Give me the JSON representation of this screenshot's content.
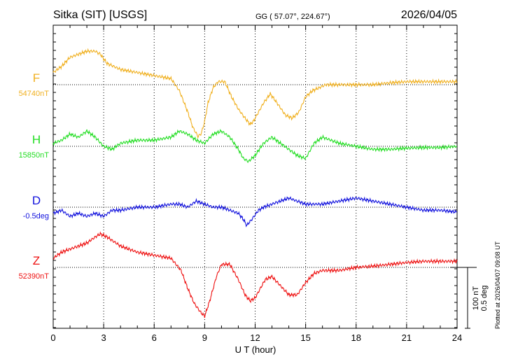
{
  "header": {
    "station": "Sitka (SIT)  [USGS]",
    "coords": "GG ( 57.07°, 224.67°)",
    "date": "2026/04/05"
  },
  "side_note": "Plotted at 2026/04/07 09:08 UT",
  "scale": {
    "nt": "100 nT",
    "deg": "0.5 deg"
  },
  "chart_data": {
    "type": "line",
    "title": "Sitka (SIT)  [USGS]",
    "xlabel": "U T (hour)",
    "xlim": [
      0,
      24
    ],
    "xticks": [
      0,
      3,
      6,
      9,
      12,
      15,
      18,
      21,
      24
    ],
    "grid": "dotted baseline per component",
    "scale_note": "one scale-bar unit = 100 nT or 0.5 deg",
    "series": [
      {
        "name": "F",
        "baseline_label": "54740nT",
        "color": "#f0b020",
        "units": "scale-bar units relative to baseline",
        "x": [
          0,
          0.5,
          1,
          1.5,
          2,
          2.5,
          2.8,
          3.2,
          4,
          5,
          6,
          7,
          7.5,
          8,
          8.3,
          8.6,
          8.8,
          9,
          9.2,
          9.5,
          9.8,
          10.2,
          10.6,
          11,
          11.4,
          11.7,
          11.9,
          12.2,
          12.5,
          12.9,
          13.3,
          13.8,
          14.2,
          14.6,
          15,
          15.4,
          15.8,
          16.2,
          17,
          18,
          19,
          20,
          21,
          22,
          23,
          24
        ],
        "values": [
          0.2,
          0.3,
          0.45,
          0.5,
          0.55,
          0.55,
          0.5,
          0.35,
          0.25,
          0.2,
          0.15,
          0.1,
          -0.1,
          -0.45,
          -0.7,
          -0.85,
          -0.8,
          -0.6,
          -0.3,
          -0.05,
          0.05,
          0.05,
          -0.2,
          -0.4,
          -0.55,
          -0.65,
          -0.6,
          -0.45,
          -0.3,
          -0.15,
          -0.3,
          -0.5,
          -0.55,
          -0.45,
          -0.2,
          -0.1,
          -0.05,
          0.0,
          0.0,
          0.0,
          0.0,
          0.03,
          0.05,
          0.05,
          0.05,
          0.05
        ]
      },
      {
        "name": "H",
        "baseline_label": "15850nT",
        "color": "#22dd22",
        "units": "scale-bar units relative to baseline",
        "x": [
          0,
          0.5,
          1,
          1.5,
          2,
          2.5,
          3,
          3.5,
          4,
          5,
          6,
          7,
          7.5,
          8,
          8.5,
          9,
          9.5,
          10,
          10.5,
          11,
          11.3,
          11.6,
          12,
          12.5,
          13,
          13.5,
          14,
          14.5,
          15,
          15.5,
          16,
          17,
          18,
          19,
          20,
          21,
          22,
          23,
          24
        ],
        "values": [
          0.05,
          0.1,
          0.2,
          0.15,
          0.25,
          0.15,
          0.0,
          -0.05,
          0.05,
          0.1,
          0.1,
          0.15,
          0.25,
          0.2,
          0.1,
          0.05,
          0.2,
          0.25,
          0.15,
          -0.05,
          -0.2,
          -0.25,
          -0.15,
          0.05,
          0.15,
          0.05,
          -0.05,
          -0.15,
          -0.2,
          0.05,
          0.15,
          0.05,
          0.0,
          -0.05,
          -0.05,
          -0.03,
          -0.02,
          -0.02,
          0.0
        ]
      },
      {
        "name": "D",
        "baseline_label": "-0.5deg",
        "color": "#1111dd",
        "units": "scale-bar units relative to baseline",
        "x": [
          0,
          0.5,
          1,
          1.5,
          2,
          2.5,
          3,
          3.5,
          4,
          5,
          6,
          7,
          7.5,
          8,
          8.5,
          9,
          9.5,
          10,
          10.5,
          11,
          11.3,
          11.5,
          11.8,
          12.2,
          12.5,
          13,
          13.5,
          14,
          14.5,
          15,
          15.5,
          16,
          17,
          18,
          19,
          20,
          21,
          22,
          23,
          24
        ],
        "values": [
          -0.1,
          -0.05,
          -0.15,
          -0.1,
          -0.15,
          -0.1,
          -0.15,
          -0.05,
          -0.05,
          0.0,
          0.0,
          0.05,
          0.05,
          0.0,
          0.1,
          0.05,
          0.0,
          0.0,
          -0.05,
          -0.1,
          -0.2,
          -0.3,
          -0.2,
          -0.05,
          0.0,
          0.05,
          0.1,
          0.15,
          0.1,
          0.05,
          0.05,
          0.05,
          0.1,
          0.15,
          0.1,
          0.05,
          0.0,
          -0.05,
          -0.05,
          -0.08
        ]
      },
      {
        "name": "Z",
        "baseline_label": "52390nT",
        "color": "#ee1111",
        "units": "scale-bar units relative to baseline",
        "x": [
          0,
          0.5,
          1,
          1.5,
          2,
          2.5,
          2.8,
          3.2,
          4,
          5,
          6,
          7,
          7.6,
          8,
          8.4,
          8.8,
          9,
          9.3,
          9.7,
          10,
          10.5,
          11,
          11.4,
          11.7,
          12,
          12.3,
          12.6,
          13,
          13.5,
          14,
          14.5,
          15,
          15.5,
          16,
          17,
          18,
          19,
          20,
          21,
          22,
          23,
          24
        ],
        "values": [
          0.15,
          0.25,
          0.3,
          0.35,
          0.4,
          0.5,
          0.55,
          0.5,
          0.35,
          0.25,
          0.2,
          0.15,
          -0.05,
          -0.35,
          -0.6,
          -0.75,
          -0.8,
          -0.55,
          -0.15,
          0.05,
          0.05,
          -0.2,
          -0.45,
          -0.55,
          -0.5,
          -0.35,
          -0.2,
          -0.15,
          -0.3,
          -0.45,
          -0.45,
          -0.25,
          -0.1,
          -0.05,
          -0.05,
          0.0,
          0.02,
          0.05,
          0.08,
          0.1,
          0.1,
          0.1
        ]
      }
    ]
  }
}
